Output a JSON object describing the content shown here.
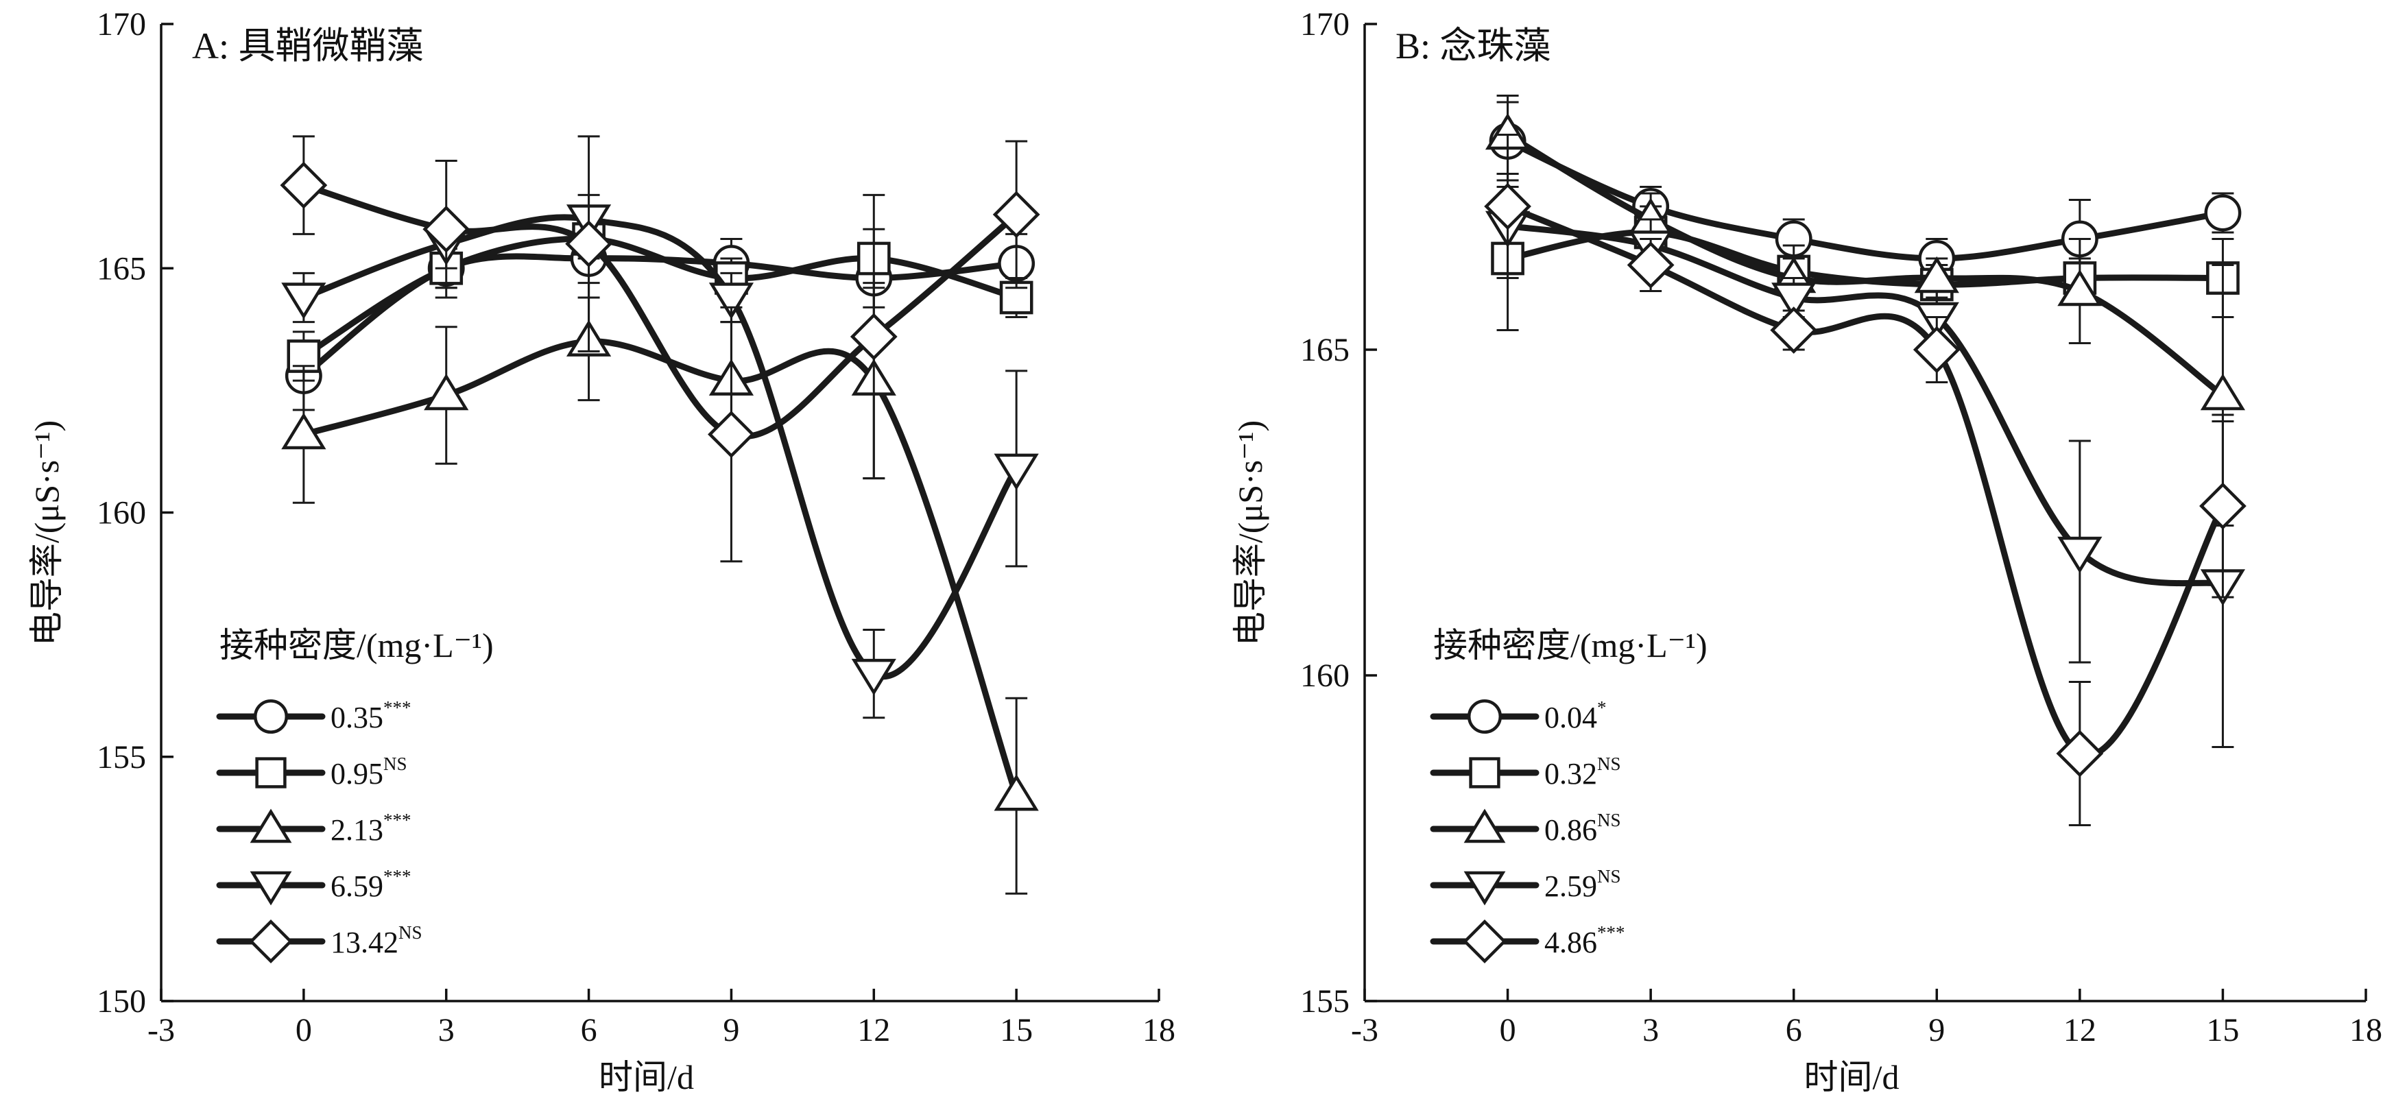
{
  "chart_data": [
    {
      "type": "line",
      "title": "A: 具鞘微鞘藻",
      "xlabel": "时间/d",
      "ylabel": "电导率/(μS·s⁻¹)",
      "xlim": [
        -3,
        18
      ],
      "ylim": [
        150,
        170
      ],
      "xticks": [
        -3,
        0,
        3,
        6,
        9,
        12,
        15,
        18
      ],
      "yticks": [
        150,
        155,
        160,
        165,
        170
      ],
      "grid": false,
      "legend": {
        "title": "接种密度/(mg·L⁻¹)",
        "placement": "lower-left",
        "entries": [
          {
            "label": "0.35",
            "sup": "***"
          },
          {
            "label": "0.95",
            "sup": "NS"
          },
          {
            "label": "2.13",
            "sup": "***"
          },
          {
            "label": "6.59",
            "sup": "***"
          },
          {
            "label": "13.42",
            "sup": "NS"
          }
        ]
      },
      "x": [
        0,
        3,
        6,
        9,
        12,
        15
      ],
      "series": [
        {
          "name": "0.35",
          "marker": "circle",
          "values": [
            162.8,
            165.0,
            165.2,
            165.1,
            164.8,
            165.1
          ],
          "err": [
            0.7,
            0.4,
            0.8,
            0.5,
            0.6,
            0.6
          ]
        },
        {
          "name": "0.95",
          "marker": "square",
          "values": [
            163.2,
            165.0,
            165.6,
            164.8,
            165.2,
            164.4
          ],
          "err": [
            0.5,
            0.4,
            0.4,
            0.4,
            0.6,
            0.4
          ]
        },
        {
          "name": "2.13",
          "marker": "triangle-up",
          "values": [
            161.6,
            162.4,
            163.5,
            162.7,
            162.7,
            154.2
          ],
          "err": [
            1.4,
            1.4,
            1.2,
            1.2,
            2.0,
            2.0
          ]
        },
        {
          "name": "6.59",
          "marker": "triangle-down",
          "values": [
            164.4,
            165.5,
            166.0,
            164.4,
            156.7,
            160.9
          ],
          "err": [
            0.5,
            0.5,
            0.5,
            0.5,
            0.9,
            2.0
          ]
        },
        {
          "name": "13.42",
          "marker": "diamond",
          "values": [
            166.7,
            165.8,
            165.5,
            161.6,
            163.6,
            166.1
          ],
          "err": [
            1.0,
            1.4,
            2.2,
            2.6,
            2.9,
            1.5
          ]
        }
      ]
    },
    {
      "type": "line",
      "title": "B: 念珠藻",
      "xlabel": "时间/d",
      "ylabel": "电导率/(μS·s⁻¹)",
      "xlim": [
        -3,
        18
      ],
      "ylim": [
        155,
        170
      ],
      "xticks": [
        -3,
        0,
        3,
        6,
        9,
        12,
        15,
        18
      ],
      "yticks": [
        155,
        160,
        165,
        170
      ],
      "grid": false,
      "legend": {
        "title": "接种密度/(mg·L⁻¹)",
        "placement": "lower-left",
        "entries": [
          {
            "label": "0.04",
            "sup": "*"
          },
          {
            "label": "0.32",
            "sup": "NS"
          },
          {
            "label": "0.86",
            "sup": "NS"
          },
          {
            "label": "2.59",
            "sup": "NS"
          },
          {
            "label": "4.86",
            "sup": "***"
          }
        ]
      },
      "x": [
        0,
        3,
        6,
        9,
        12,
        15
      ],
      "series": [
        {
          "name": "0.04",
          "marker": "circle",
          "values": [
            168.2,
            167.2,
            166.7,
            166.4,
            166.7,
            167.1
          ],
          "err": [
            0.6,
            0.3,
            0.3,
            0.3,
            0.6,
            0.3
          ]
        },
        {
          "name": "0.32",
          "marker": "square",
          "values": [
            166.4,
            166.8,
            166.2,
            166.0,
            166.1,
            166.1
          ],
          "err": [
            1.1,
            0.4,
            0.4,
            0.3,
            0.3,
            0.6
          ]
        },
        {
          "name": "0.86",
          "marker": "triangle-up",
          "values": [
            168.3,
            167.0,
            166.1,
            166.1,
            165.9,
            164.3
          ],
          "err": [
            0.6,
            0.4,
            0.3,
            0.3,
            0.8,
            2.0
          ]
        },
        {
          "name": "2.59",
          "marker": "triangle-down",
          "values": [
            166.9,
            166.6,
            165.8,
            165.5,
            161.9,
            161.4
          ],
          "err": [
            0.8,
            0.4,
            0.3,
            0.4,
            1.7,
            2.5
          ]
        },
        {
          "name": "4.86",
          "marker": "diamond",
          "values": [
            167.2,
            166.3,
            165.3,
            165.0,
            158.8,
            162.6
          ],
          "err": [
            1.1,
            0.4,
            0.3,
            0.5,
            1.1,
            1.4
          ]
        }
      ]
    }
  ]
}
